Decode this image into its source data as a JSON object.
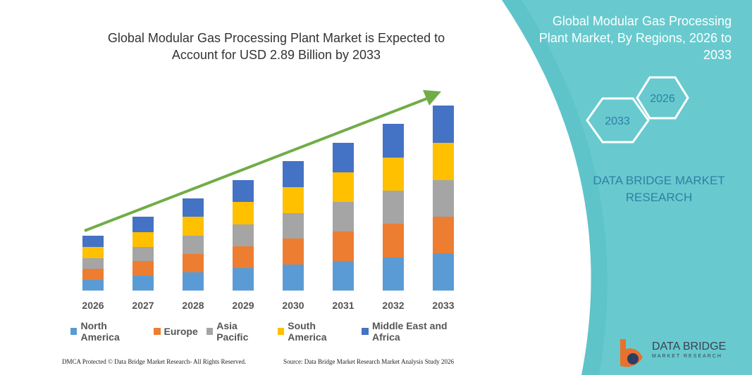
{
  "chart_data": {
    "type": "stacked_bar",
    "title": "Global Modular Gas Processing Plant Market is Expected to Account for USD 2.89 Billion by 2033",
    "categories": [
      "2026",
      "2027",
      "2028",
      "2029",
      "2030",
      "2031",
      "2032",
      "2033"
    ],
    "series": [
      {
        "name": "North America",
        "color": "#5b9bd5",
        "values": [
          15,
          21,
          26,
          32,
          37,
          42,
          47,
          53
        ]
      },
      {
        "name": "Europe",
        "color": "#ed7d31",
        "values": [
          16,
          21,
          26,
          31,
          37,
          42,
          48,
          52
        ]
      },
      {
        "name": "Asia Pacific",
        "color": "#a5a5a5",
        "values": [
          15,
          20,
          26,
          31,
          36,
          42,
          47,
          52
        ]
      },
      {
        "name": "South America",
        "color": "#ffc000",
        "values": [
          16,
          21,
          27,
          32,
          37,
          42,
          47,
          53
        ]
      },
      {
        "name": "Middle East and Africa",
        "color": "#4472c4",
        "values": [
          16,
          22,
          26,
          31,
          37,
          42,
          48,
          53
        ]
      }
    ],
    "ylim": [
      0,
      300
    ]
  },
  "panel": {
    "title": "Global Modular Gas Processing Plant Market, By Regions, 2026 to 2033",
    "hex_left": "2033",
    "hex_right": "2026",
    "brand": "DATA BRIDGE MARKET RESEARCH"
  },
  "footer": {
    "left": "DMCA Protected © Data Bridge Market Research- All Rights Reserved.",
    "right": "Source: Data Bridge Market Research  Market Analysis Study 2026"
  },
  "logo": {
    "name": "DATA BRIDGE",
    "sub": "MARKET RESEARCH"
  }
}
